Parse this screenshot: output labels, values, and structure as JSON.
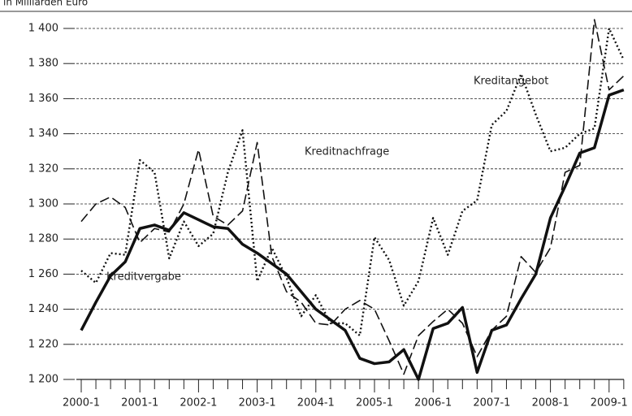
{
  "chart_data": {
    "type": "line",
    "title": "in Milliarden Euro",
    "categories": [
      "2000-1",
      null,
      null,
      null,
      "2001-1",
      null,
      null,
      null,
      "2002-1",
      null,
      null,
      null,
      "2003-1",
      null,
      null,
      null,
      "2004-1",
      null,
      null,
      null,
      "2005-1",
      null,
      null,
      null,
      "2006-1",
      null,
      null,
      null,
      "2007-1",
      null,
      null,
      null,
      "2008-1",
      null,
      null,
      null,
      "2009-1",
      null
    ],
    "series": [
      {
        "name": "Kreditvergabe",
        "color": "#111111",
        "style": "solid",
        "values": [
          1228,
          1244,
          1259,
          1267,
          1286,
          1288,
          1285,
          1295,
          1291,
          1287,
          1286,
          1277,
          1272,
          1266,
          1260,
          1250,
          1240,
          1234,
          1228,
          1212,
          1209,
          1210,
          1217,
          1200,
          1229,
          1232,
          1241,
          1204,
          1228,
          1231,
          1246,
          1260,
          1292,
          1310,
          1329,
          1332,
          1362,
          1365
        ]
      },
      {
        "name": "Kreditnachfrage",
        "color": "#111111",
        "style": "dashed",
        "values": [
          1290,
          1300,
          1304,
          1298,
          1278,
          1286,
          1284,
          1300,
          1331,
          1293,
          1288,
          1296,
          1335,
          1270,
          1250,
          1244,
          1232,
          1231,
          1240,
          1245,
          1240,
          1222,
          1203,
          1225,
          1233,
          1240,
          1232,
          1213,
          1228,
          1236,
          1270,
          1261,
          1275,
          1318,
          1322,
          1405,
          1365,
          1373
        ]
      },
      {
        "name": "Kreditangebot",
        "color": "#111111",
        "style": "dotted",
        "values": [
          1262,
          1255,
          1272,
          1271,
          1325,
          1318,
          1269,
          1290,
          1276,
          1283,
          1318,
          1342,
          1256,
          1275,
          1258,
          1236,
          1248,
          1232,
          1232,
          1225,
          1281,
          1268,
          1242,
          1256,
          1292,
          1271,
          1296,
          1302,
          1345,
          1353,
          1374,
          1351,
          1330,
          1332,
          1340,
          1343,
          1400,
          1382
        ]
      }
    ],
    "ylim": [
      1200,
      1400
    ],
    "yticks": [
      {
        "value": 1200,
        "label": "1 200"
      },
      {
        "value": 1220,
        "label": "1 220"
      },
      {
        "value": 1240,
        "label": "1 240"
      },
      {
        "value": 1260,
        "label": "1 260"
      },
      {
        "value": 1280,
        "label": "1 280"
      },
      {
        "value": 1300,
        "label": "1 300"
      },
      {
        "value": 1320,
        "label": "1 320"
      },
      {
        "value": 1340,
        "label": "1 340"
      },
      {
        "value": 1360,
        "label": "1 360"
      },
      {
        "value": 1380,
        "label": "1 380"
      },
      {
        "value": 1400,
        "label": "1 400"
      }
    ],
    "grid": true
  }
}
